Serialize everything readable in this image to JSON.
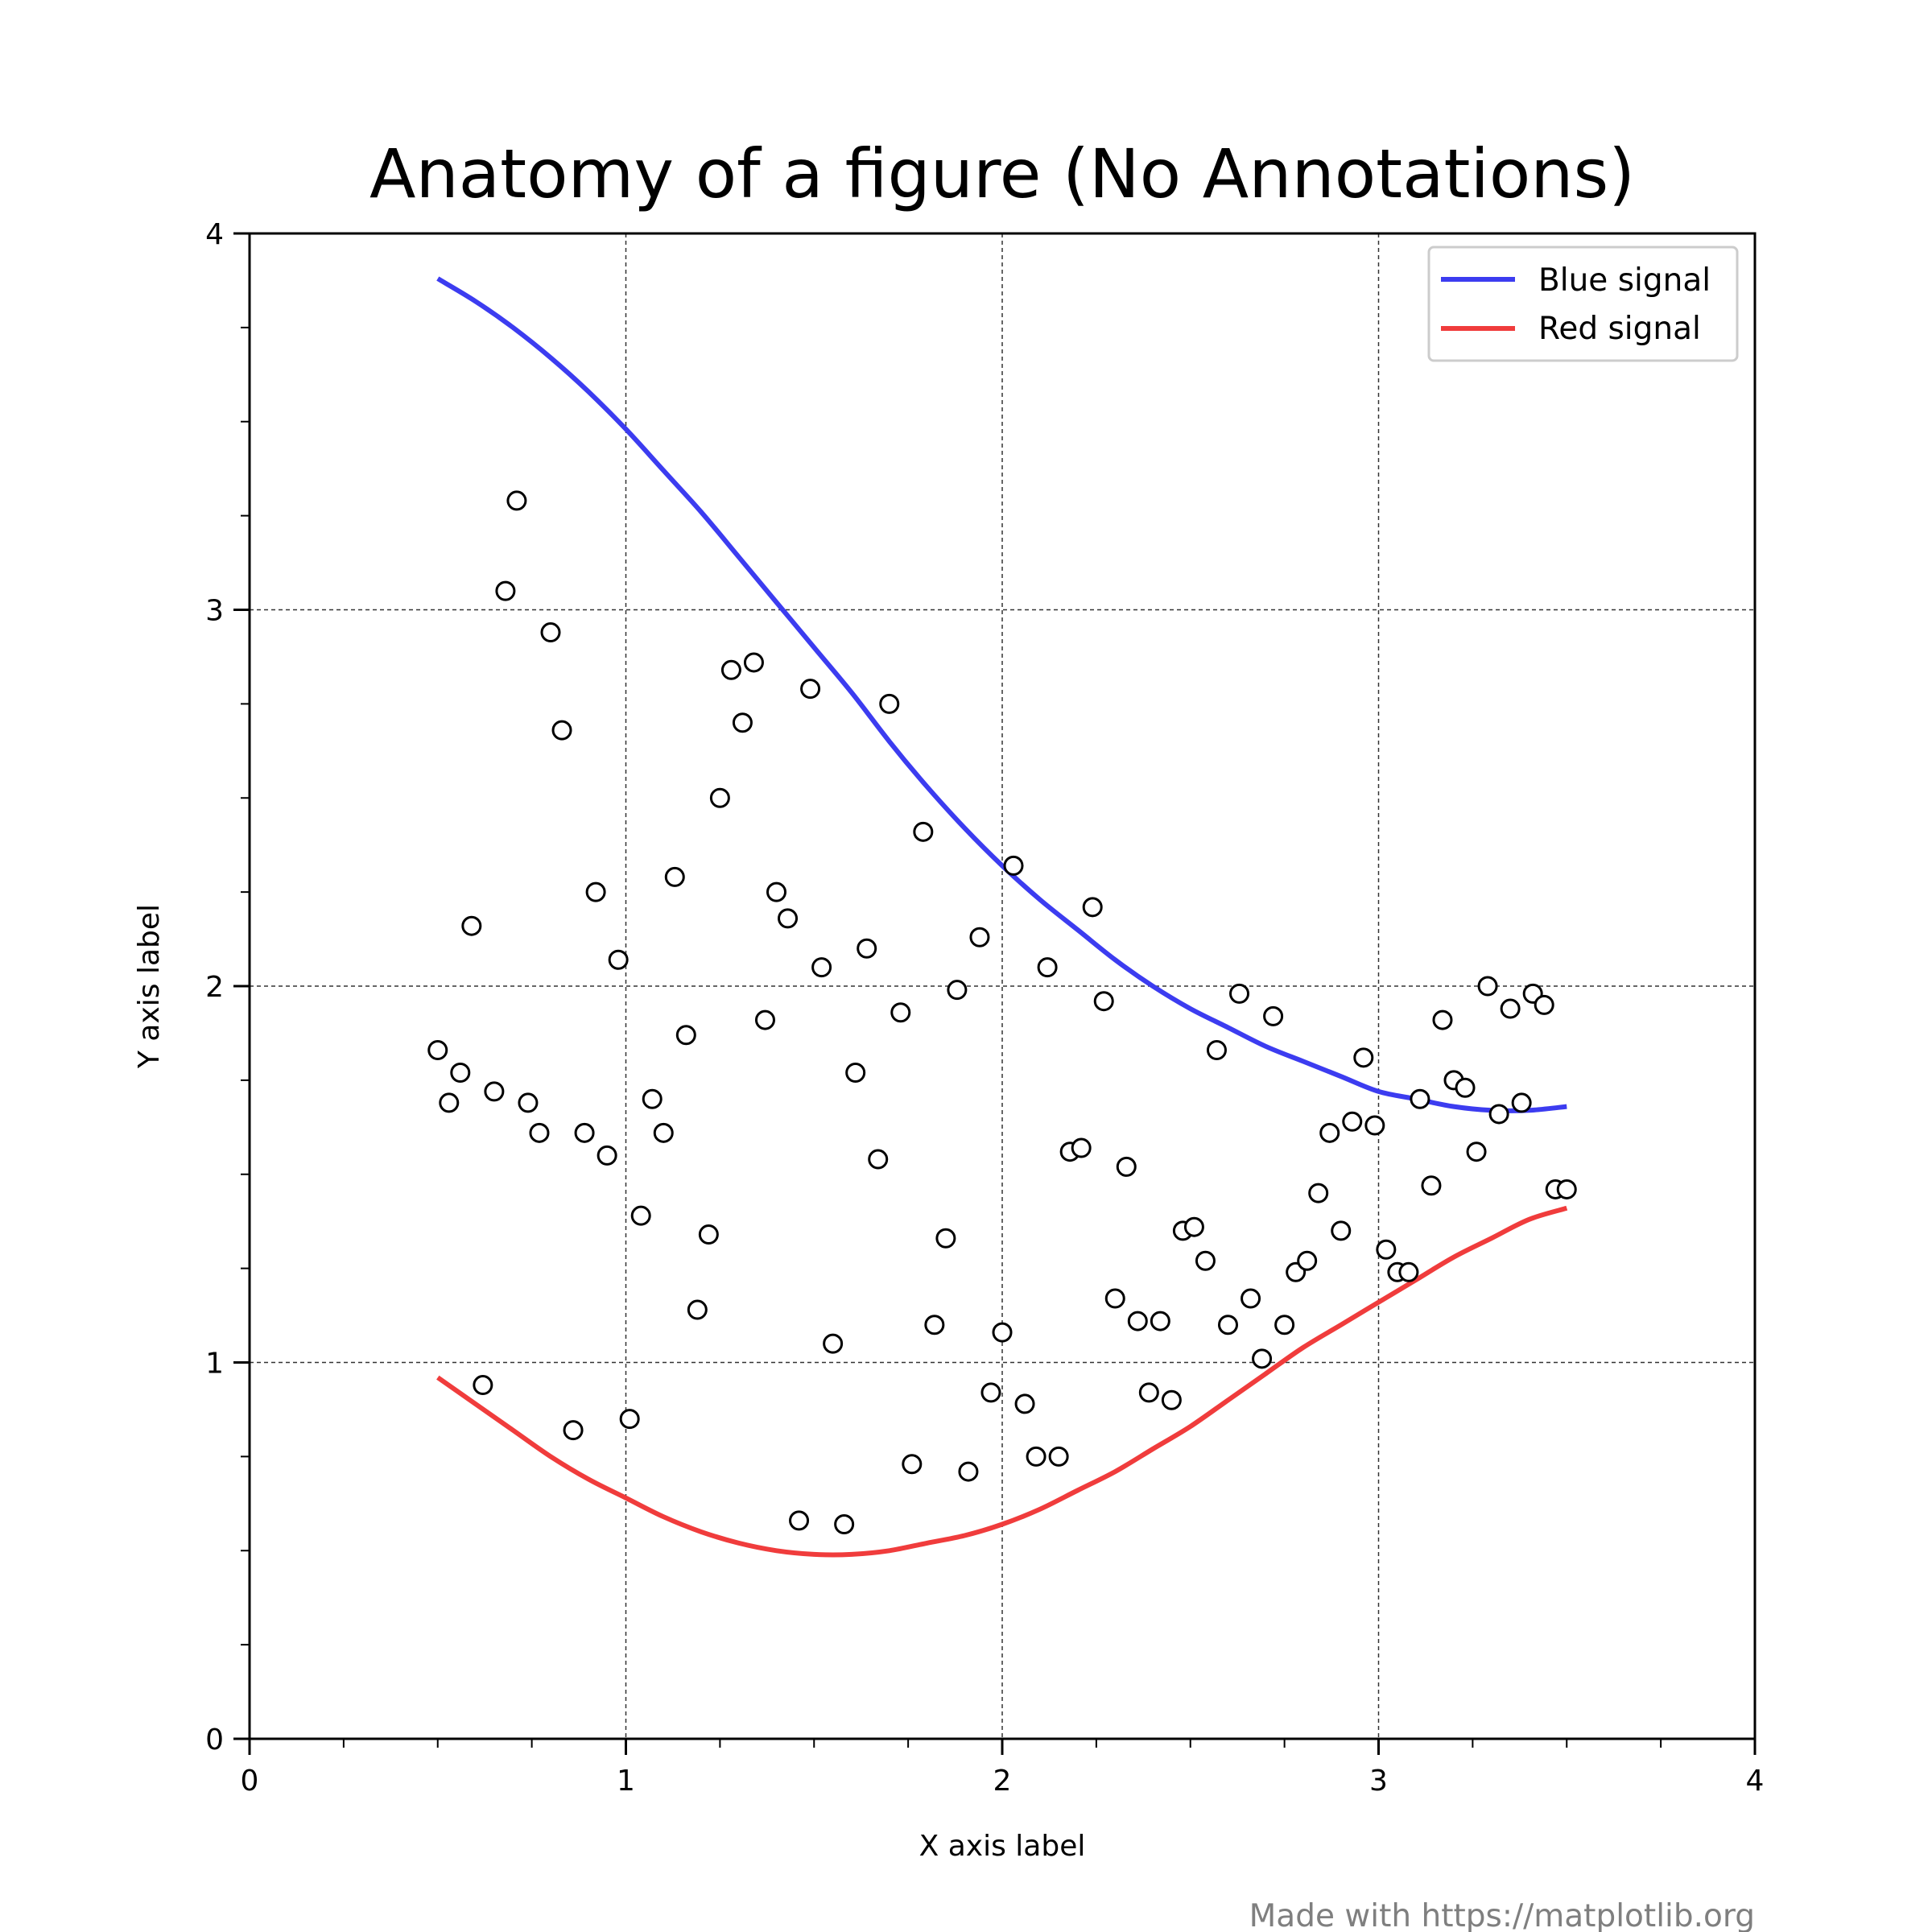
{
  "chart_data": {
    "type": "line",
    "title": "Anatomy of a figure (No Annotations)",
    "xlabel": "X axis label",
    "ylabel": "Y axis label",
    "xlim": [
      0,
      4
    ],
    "ylim": [
      0,
      4
    ],
    "x_ticks": [
      "0",
      "1",
      "2",
      "3",
      "4"
    ],
    "y_ticks": [
      "0",
      "1",
      "2",
      "3",
      "4"
    ],
    "x_minor_step": 0.25,
    "y_minor_step": 0.25,
    "grid": true,
    "legend_position": "top-right",
    "series": [
      {
        "name": "Blue signal",
        "kind": "line",
        "color": "#3c3cf0",
        "x": [
          0.5,
          0.6,
          0.7,
          0.8,
          0.9,
          1.0,
          1.1,
          1.2,
          1.3,
          1.4,
          1.5,
          1.6,
          1.7,
          1.8,
          1.9,
          2.0,
          2.1,
          2.2,
          2.3,
          2.4,
          2.5,
          2.6,
          2.7,
          2.8,
          2.9,
          3.0,
          3.1,
          3.2,
          3.3,
          3.4,
          3.5
        ],
        "y": [
          3.88,
          3.82,
          3.75,
          3.67,
          3.58,
          3.48,
          3.37,
          3.26,
          3.14,
          3.02,
          2.9,
          2.78,
          2.65,
          2.53,
          2.42,
          2.32,
          2.23,
          2.15,
          2.07,
          2.0,
          1.94,
          1.89,
          1.84,
          1.8,
          1.76,
          1.72,
          1.7,
          1.68,
          1.67,
          1.67,
          1.68
        ]
      },
      {
        "name": "Red signal",
        "kind": "line",
        "color": "#f03c3c",
        "x": [
          0.5,
          0.6,
          0.7,
          0.8,
          0.9,
          1.0,
          1.1,
          1.2,
          1.3,
          1.4,
          1.5,
          1.6,
          1.7,
          1.8,
          1.9,
          2.0,
          2.1,
          2.2,
          2.3,
          2.4,
          2.5,
          2.6,
          2.7,
          2.8,
          2.9,
          3.0,
          3.1,
          3.2,
          3.3,
          3.4,
          3.5
        ],
        "y": [
          0.96,
          0.89,
          0.82,
          0.75,
          0.69,
          0.64,
          0.59,
          0.55,
          0.52,
          0.5,
          0.49,
          0.49,
          0.5,
          0.52,
          0.54,
          0.57,
          0.61,
          0.66,
          0.71,
          0.77,
          0.83,
          0.9,
          0.97,
          1.04,
          1.1,
          1.16,
          1.22,
          1.28,
          1.33,
          1.38,
          1.41
        ]
      },
      {
        "name": "",
        "kind": "scatter",
        "color": "#000000",
        "x": [
          0.5,
          0.53,
          0.56,
          0.59,
          0.62,
          0.65,
          0.68,
          0.71,
          0.74,
          0.77,
          0.8,
          0.83,
          0.86,
          0.89,
          0.92,
          0.95,
          0.98,
          1.01,
          1.04,
          1.07,
          1.1,
          1.13,
          1.16,
          1.19,
          1.22,
          1.25,
          1.28,
          1.31,
          1.34,
          1.37,
          1.4,
          1.43,
          1.46,
          1.49,
          1.52,
          1.55,
          1.58,
          1.61,
          1.64,
          1.67,
          1.7,
          1.73,
          1.76,
          1.79,
          1.82,
          1.85,
          1.88,
          1.91,
          1.94,
          1.97,
          2.0,
          2.03,
          2.06,
          2.09,
          2.12,
          2.15,
          2.18,
          2.21,
          2.24,
          2.27,
          2.3,
          2.33,
          2.36,
          2.39,
          2.42,
          2.45,
          2.48,
          2.51,
          2.54,
          2.57,
          2.6,
          2.63,
          2.66,
          2.69,
          2.72,
          2.75,
          2.78,
          2.81,
          2.84,
          2.87,
          2.9,
          2.93,
          2.96,
          2.99,
          3.02,
          3.05,
          3.08,
          3.11,
          3.14,
          3.17,
          3.2,
          3.23,
          3.26,
          3.29,
          3.32,
          3.35,
          3.38,
          3.41,
          3.44,
          3.47,
          3.5
        ],
        "y": [
          1.83,
          1.69,
          1.77,
          2.16,
          0.94,
          1.72,
          3.05,
          3.29,
          1.69,
          1.61,
          2.94,
          2.68,
          0.82,
          1.61,
          2.25,
          1.55,
          2.07,
          0.85,
          1.39,
          1.7,
          1.61,
          2.29,
          1.87,
          1.14,
          1.34,
          2.5,
          2.84,
          2.7,
          2.86,
          1.91,
          2.25,
          2.18,
          0.58,
          2.79,
          2.05,
          1.05,
          0.57,
          1.77,
          2.1,
          1.54,
          2.75,
          1.93,
          0.73,
          2.41,
          1.1,
          1.33,
          1.99,
          0.71,
          2.13,
          0.92,
          1.08,
          2.32,
          0.89,
          0.75,
          2.05,
          0.75,
          1.56,
          1.57,
          2.21,
          1.96,
          1.17,
          1.52,
          1.11,
          0.92,
          1.11,
          0.9,
          1.35,
          1.36,
          1.27,
          1.83,
          1.1,
          1.98,
          1.17,
          1.01,
          1.92,
          1.1,
          1.24,
          1.27,
          1.45,
          1.61,
          1.35,
          1.64,
          1.81,
          1.63,
          1.3,
          1.24,
          1.24,
          1.7,
          1.47,
          1.91,
          1.75,
          1.73,
          1.56,
          2.0,
          1.66,
          1.94,
          1.69,
          1.98,
          1.95,
          1.46,
          1.46
        ]
      }
    ]
  },
  "credit": "Made with https://matplotlib.org"
}
